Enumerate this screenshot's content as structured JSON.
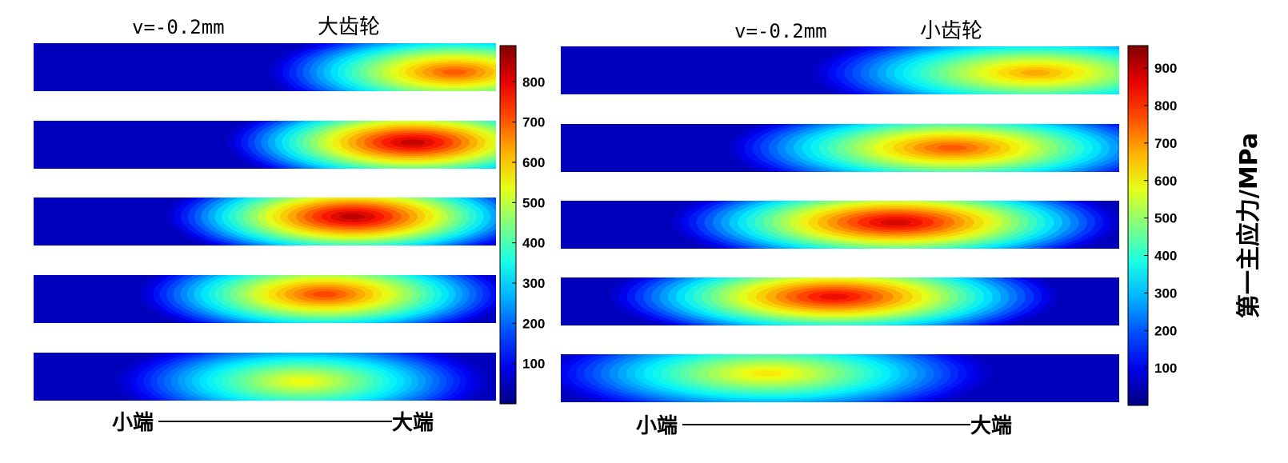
{
  "chart_data": [
    {
      "type": "heatmap",
      "param_label": "v=-0.2mm",
      "title": "大齿轮",
      "x_start_label": "小端",
      "x_end_label": "大端",
      "colormap": "jet",
      "color_range": [
        0,
        890
      ],
      "colorbar_ticks": [
        100,
        200,
        300,
        400,
        500,
        600,
        700,
        800
      ],
      "colorbar_title": "",
      "panels": [
        {
          "peak_value": 720,
          "peak_position": 0.91,
          "peak_height": 0.4
        },
        {
          "peak_value": 850,
          "peak_position": 0.82,
          "peak_height": 0.55
        },
        {
          "peak_value": 860,
          "peak_position": 0.69,
          "peak_height": 0.6
        },
        {
          "peak_value": 740,
          "peak_position": 0.63,
          "peak_height": 0.6
        },
        {
          "peak_value": 560,
          "peak_position": 0.58,
          "peak_height": 0.4
        }
      ]
    },
    {
      "type": "heatmap",
      "param_label": "v=-0.2mm",
      "title": "小齿轮",
      "x_start_label": "小端",
      "x_end_label": "大端",
      "colormap": "jet",
      "color_range": [
        0,
        960
      ],
      "colorbar_ticks": [
        100,
        200,
        300,
        400,
        500,
        600,
        700,
        800,
        900
      ],
      "colorbar_title": "第一主应力/MPa",
      "panels": [
        {
          "peak_value": 700,
          "peak_position": 0.85,
          "peak_height": 0.45
        },
        {
          "peak_value": 780,
          "peak_position": 0.7,
          "peak_height": 0.5
        },
        {
          "peak_value": 900,
          "peak_position": 0.6,
          "peak_height": 0.55
        },
        {
          "peak_value": 870,
          "peak_position": 0.49,
          "peak_height": 0.6
        },
        {
          "peak_value": 630,
          "peak_position": 0.37,
          "peak_height": 0.6
        }
      ]
    }
  ]
}
